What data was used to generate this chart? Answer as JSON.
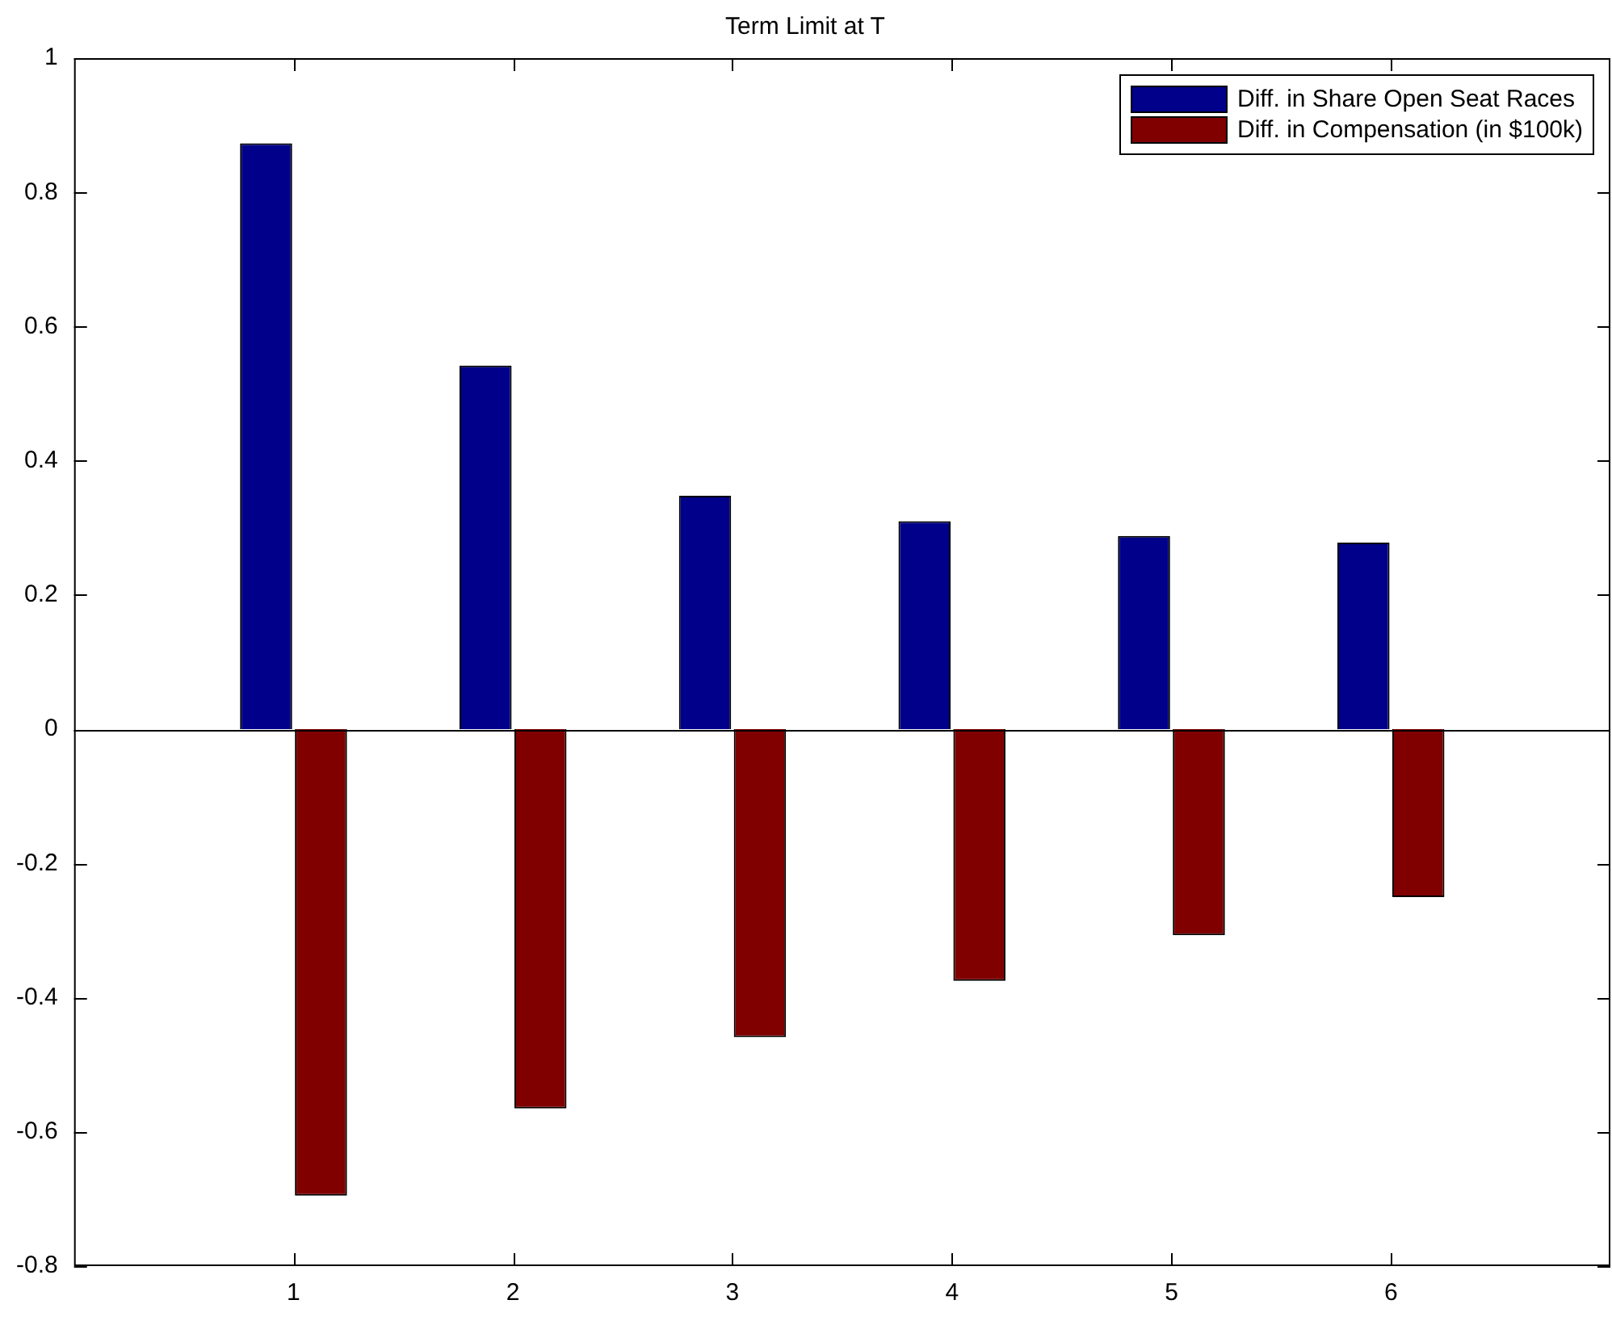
{
  "chart_data": {
    "type": "bar",
    "title": "Term Limit at T",
    "x": [
      1,
      2,
      3,
      4,
      5,
      6
    ],
    "series": [
      {
        "name": "Diff. in Share Open Seat Races",
        "color": "#00008b",
        "values": [
          0.873,
          0.542,
          0.348,
          0.31,
          0.288,
          0.278
        ]
      },
      {
        "name": "Diff. in Compensation (in $100k)",
        "color": "#800000",
        "values": [
          -0.695,
          -0.565,
          -0.459,
          -0.375,
          -0.307,
          -0.25
        ]
      }
    ],
    "xlim": [
      0,
      7
    ],
    "xticks": [
      1,
      2,
      3,
      4,
      5,
      6
    ],
    "ylim": [
      -0.8,
      1
    ],
    "yticks": [
      -0.8,
      -0.6,
      -0.4,
      -0.2,
      0,
      0.2,
      0.4,
      0.6,
      0.8,
      1
    ],
    "ref_lines": [
      {
        "axis": "y",
        "value": 0,
        "color": "#000000"
      }
    ],
    "grid": false,
    "legend": "top right"
  }
}
